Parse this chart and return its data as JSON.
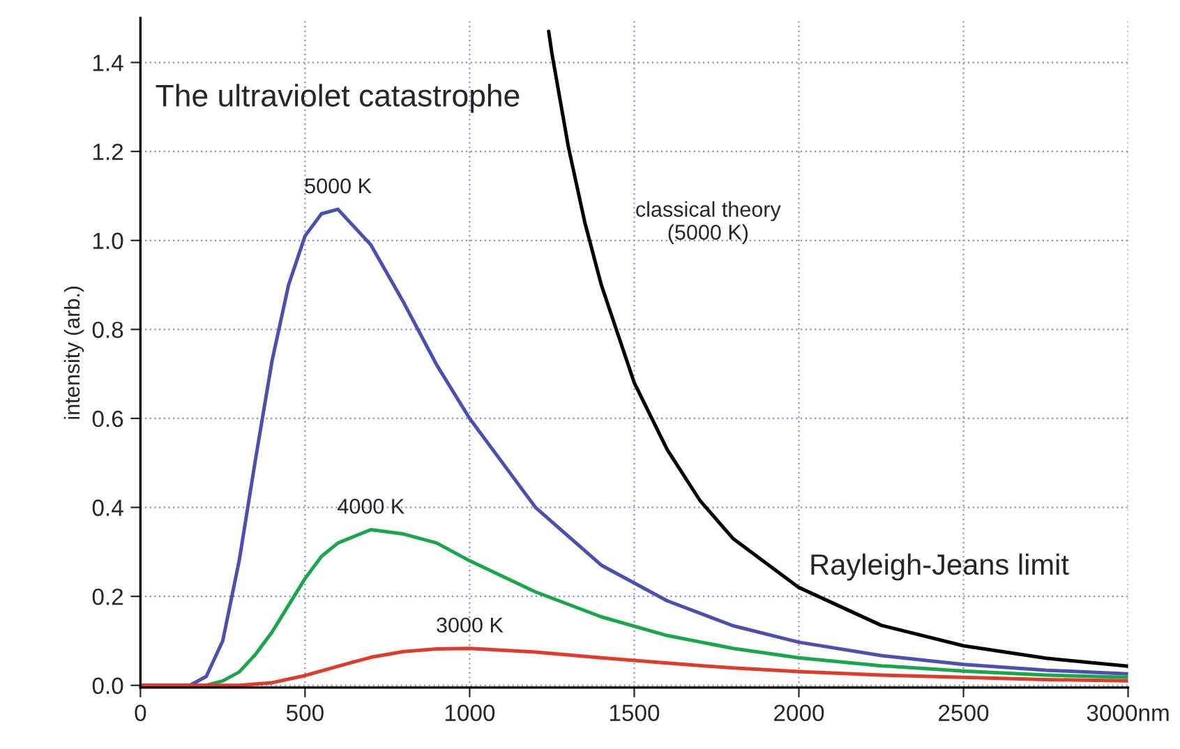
{
  "chart_data": {
    "type": "line",
    "title": "The ultraviolet catastrophe",
    "ylabel": "intensity (arb.)",
    "xlim": [
      0,
      3000
    ],
    "xticks": [
      0,
      500,
      1000,
      1500,
      2000,
      2500,
      {
        "value": 3000,
        "label": "3000nm"
      }
    ],
    "ylim": [
      -0.005,
      1.5
    ],
    "yticks": [
      {
        "value": 0,
        "label": "0.0"
      },
      {
        "value": 0.2,
        "label": "0.2"
      },
      {
        "value": 0.4,
        "label": "0.4"
      },
      {
        "value": 0.6,
        "label": "0.6"
      },
      {
        "value": 0.8,
        "label": "0.8"
      },
      {
        "value": 1.0,
        "label": "1.0"
      },
      {
        "value": 1.2,
        "label": "1.2"
      },
      {
        "value": 1.4,
        "label": "1.4"
      }
    ],
    "grid": true,
    "legend": false,
    "marker": "none",
    "line_style": "solid",
    "annotations": [
      "Rayleigh-Jeans limit"
    ],
    "series": [
      {
        "name": "5000 K",
        "color": "#4b4fb0",
        "x": [
          0,
          150,
          200,
          250,
          300,
          350,
          400,
          450,
          500,
          550,
          600,
          700,
          800,
          900,
          1000,
          1200,
          1400,
          1600,
          1800,
          2000,
          2250,
          2500,
          2750,
          3000
        ],
        "values": [
          0,
          0,
          0.02,
          0.1,
          0.28,
          0.51,
          0.73,
          0.9,
          1.01,
          1.06,
          1.07,
          0.99,
          0.86,
          0.72,
          0.6,
          0.4,
          0.27,
          0.19,
          0.134,
          0.097,
          0.067,
          0.047,
          0.034,
          0.026
        ]
      },
      {
        "name": "4000 K",
        "color": "#1aa64a",
        "x": [
          0,
          200,
          250,
          300,
          350,
          400,
          450,
          500,
          550,
          600,
          700,
          800,
          900,
          1000,
          1200,
          1400,
          1600,
          1800,
          2000,
          2250,
          2500,
          2750,
          3000
        ],
        "values": [
          0,
          0,
          0.01,
          0.03,
          0.07,
          0.12,
          0.18,
          0.24,
          0.29,
          0.32,
          0.35,
          0.34,
          0.32,
          0.28,
          0.21,
          0.154,
          0.112,
          0.083,
          0.062,
          0.044,
          0.032,
          0.023,
          0.018
        ]
      },
      {
        "name": "3000 K",
        "color": "#e03a2a",
        "x": [
          0,
          300,
          400,
          500,
          600,
          700,
          800,
          900,
          1000,
          1200,
          1400,
          1600,
          1800,
          2000,
          2250,
          2500,
          2750,
          3000
        ],
        "values": [
          0,
          0,
          0.006,
          0.022,
          0.043,
          0.063,
          0.076,
          0.082,
          0.083,
          0.075,
          0.062,
          0.05,
          0.039,
          0.031,
          0.023,
          0.018,
          0.013,
          0.01
        ]
      },
      {
        "name": "classical theory\n(5000 K)",
        "color": "#000000",
        "x": [
          1240,
          1250,
          1300,
          1350,
          1400,
          1500,
          1600,
          1700,
          1800,
          2000,
          2250,
          2500,
          2750,
          3000
        ],
        "values": [
          1.47,
          1.42,
          1.21,
          1.04,
          0.9,
          0.68,
          0.53,
          0.415,
          0.33,
          0.22,
          0.135,
          0.089,
          0.061,
          0.043
        ]
      }
    ]
  }
}
